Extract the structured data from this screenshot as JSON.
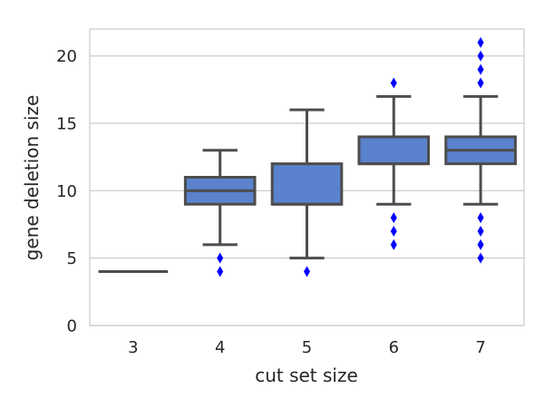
{
  "chart_data": {
    "type": "box",
    "title": "",
    "xlabel": "cut set size",
    "ylabel": "gene deletion size",
    "categories": [
      "3",
      "4",
      "5",
      "6",
      "7"
    ],
    "ylim": [
      0,
      22
    ],
    "yticks": [
      0,
      5,
      10,
      15,
      20
    ],
    "grid": "horizontal",
    "box_color": "#5a82cd",
    "line_color": "#4d4d4d",
    "outlier_color": "#0000ff",
    "boxes": [
      {
        "category": "3",
        "whisker_low": 4,
        "q1": 4,
        "median": 4,
        "q3": 4,
        "whisker_high": 4,
        "outliers": []
      },
      {
        "category": "4",
        "whisker_low": 6,
        "q1": 9,
        "median": 10,
        "q3": 11,
        "whisker_high": 13,
        "outliers": [
          4,
          5
        ]
      },
      {
        "category": "5",
        "whisker_low": 5,
        "q1": 9,
        "median": 9,
        "q3": 12,
        "whisker_high": 16,
        "outliers": [
          4
        ]
      },
      {
        "category": "6",
        "whisker_low": 9,
        "q1": 12,
        "median": 12,
        "q3": 14,
        "whisker_high": 17,
        "outliers": [
          6,
          7,
          8,
          18
        ]
      },
      {
        "category": "7",
        "whisker_low": 9,
        "q1": 12,
        "median": 13,
        "q3": 14,
        "whisker_high": 17,
        "outliers": [
          5,
          6,
          7,
          8,
          18,
          19,
          20,
          21
        ]
      }
    ]
  }
}
